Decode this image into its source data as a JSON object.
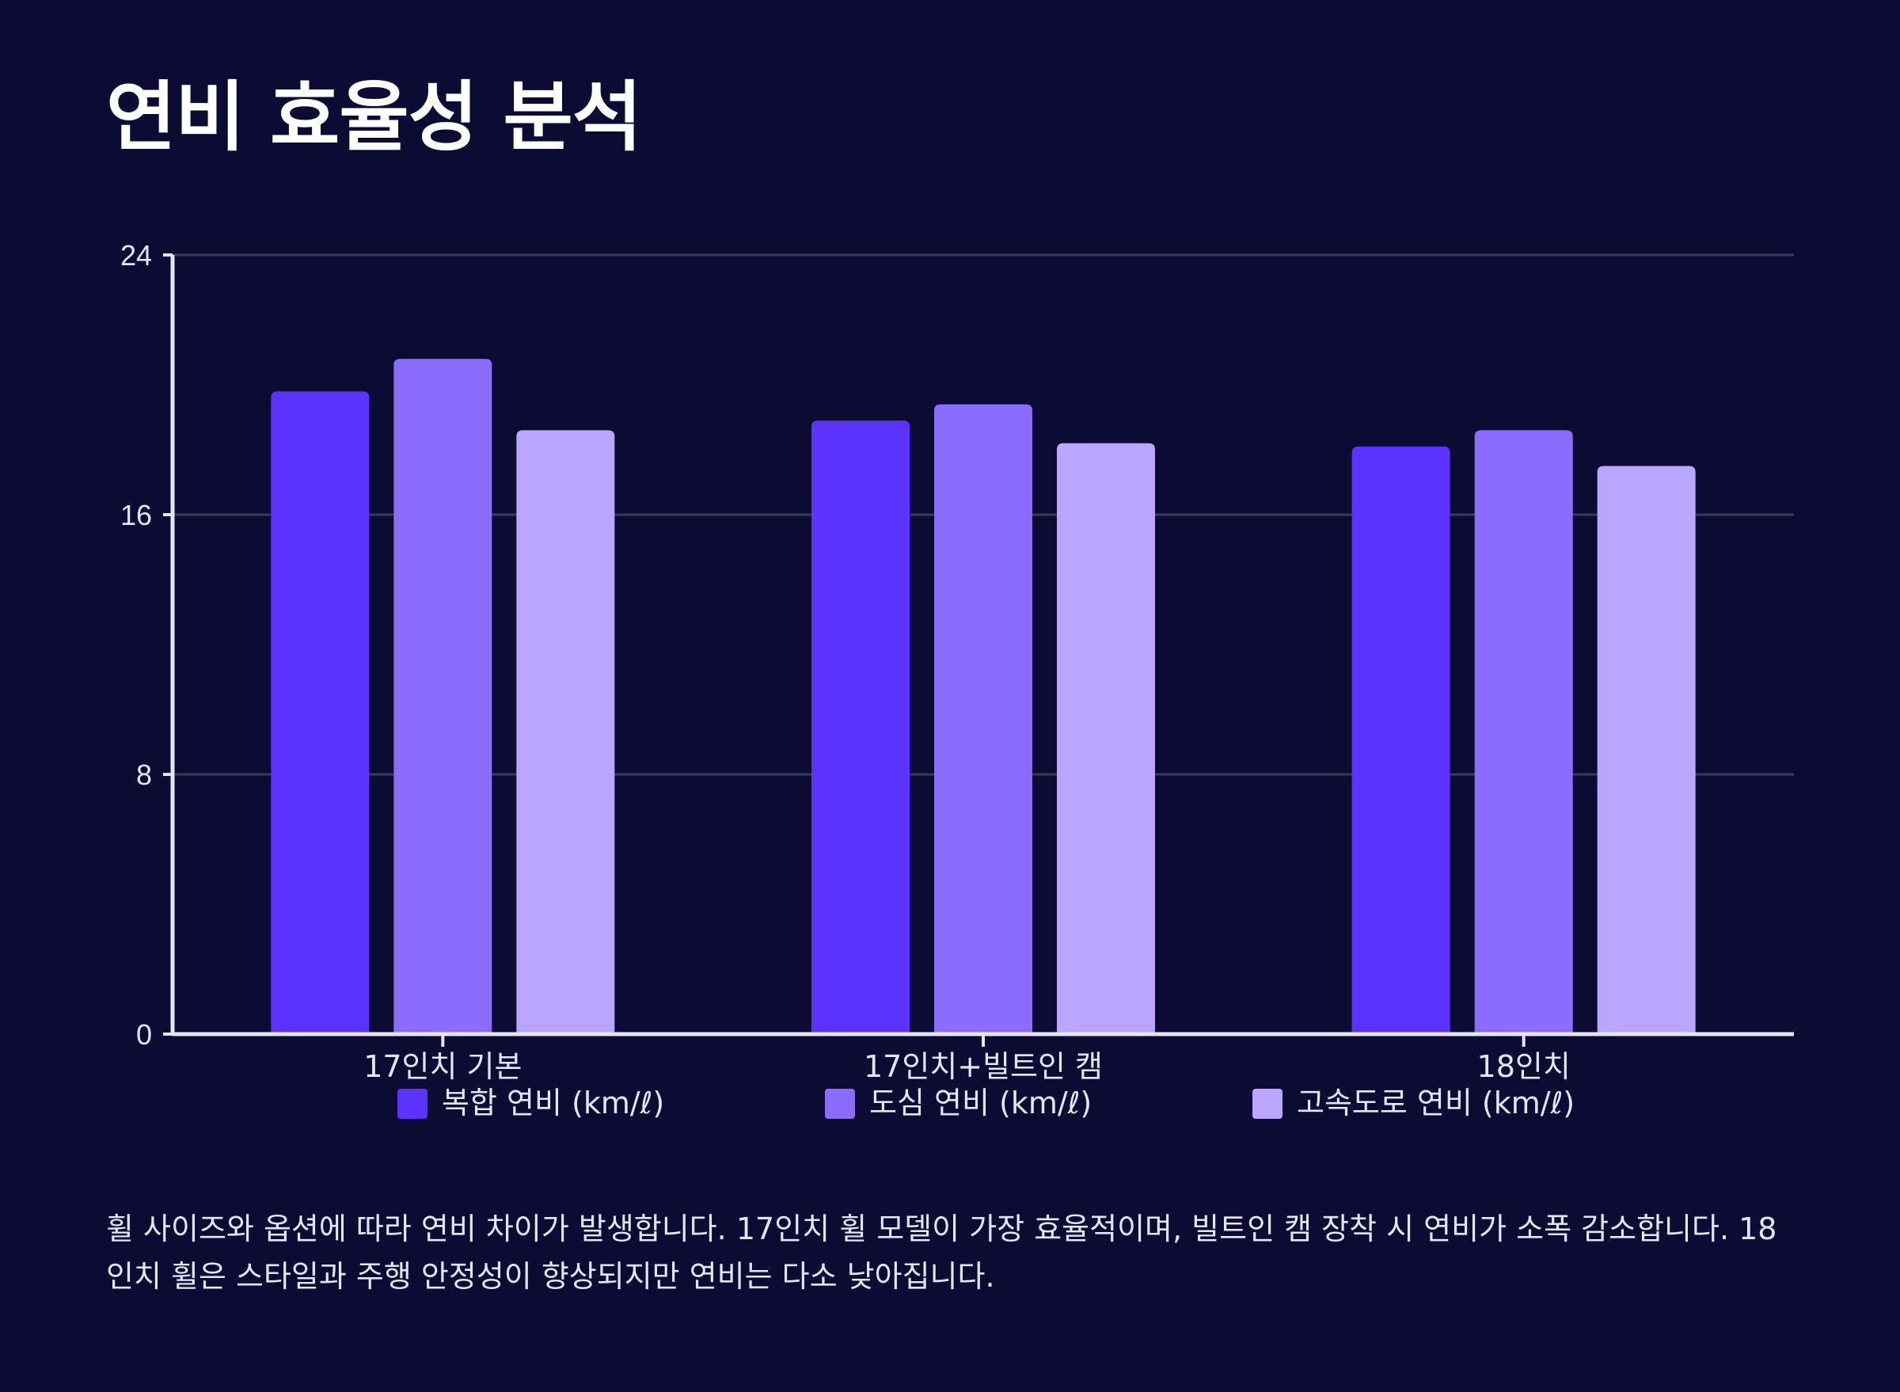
{
  "title": "연비 효율성 분석",
  "summary": "휠 사이즈와 옵션에 따라 연비 차이가 발생합니다. 17인치 휠 모델이 가장 효율적이며, 빌트인 캠 장착 시 연비가 소폭 감소합니다. 18인치 휠은 스타일과 주행 안정성이 향상되지만 연비는 다소 낮아집니다.",
  "colors": {
    "background": "#0b0b33",
    "grid": "#3a3a5c",
    "axis": "#e6e4f5"
  },
  "chart_data": {
    "type": "bar",
    "title": "연비 효율성 분석",
    "xlabel": "",
    "ylabel": "",
    "ylim": [
      0,
      24
    ],
    "yticks": [
      0,
      8,
      16,
      24
    ],
    "grid": true,
    "legend_position": "bottom",
    "categories": [
      "17인치 기본",
      "17인치+빌트인 캠",
      "18인치"
    ],
    "series": [
      {
        "name": "복합 연비 (km/ℓ)",
        "color": "#5c32ff",
        "values": [
          19.8,
          18.9,
          18.1
        ]
      },
      {
        "name": "도심 연비 (km/ℓ)",
        "color": "#8b6cff",
        "values": [
          20.8,
          19.4,
          18.6
        ]
      },
      {
        "name": "고속도로 연비 (km/ℓ)",
        "color": "#bba6ff",
        "values": [
          18.6,
          18.2,
          17.5
        ]
      }
    ]
  }
}
